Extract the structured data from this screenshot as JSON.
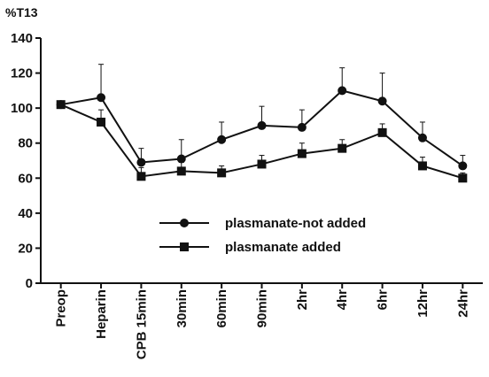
{
  "chart_data": {
    "type": "line",
    "ylabel": "%T13",
    "ylim": [
      0,
      140
    ],
    "yticks": [
      0,
      20,
      40,
      60,
      80,
      100,
      120,
      140
    ],
    "categories": [
      "Preop",
      "Heparin",
      "CPB 15min",
      "30min",
      "60min",
      "90min",
      "2hr",
      "4hr",
      "6hr",
      "12hr",
      "24hr"
    ],
    "grid": false,
    "legend_position": "center-right",
    "series": [
      {
        "name": "plasmanate-not added",
        "marker": "circle",
        "color": "#111111",
        "values": [
          102,
          106,
          69,
          71,
          82,
          90,
          89,
          110,
          104,
          83,
          67
        ],
        "error": [
          0,
          19,
          8,
          11,
          10,
          11,
          10,
          13,
          16,
          9,
          6
        ]
      },
      {
        "name": "plasmanate added",
        "marker": "square",
        "color": "#111111",
        "values": [
          102,
          92,
          61,
          64,
          63,
          68,
          74,
          77,
          86,
          67,
          60
        ],
        "error": [
          0,
          7,
          5,
          5,
          4,
          5,
          6,
          5,
          5,
          5,
          3
        ]
      }
    ]
  }
}
